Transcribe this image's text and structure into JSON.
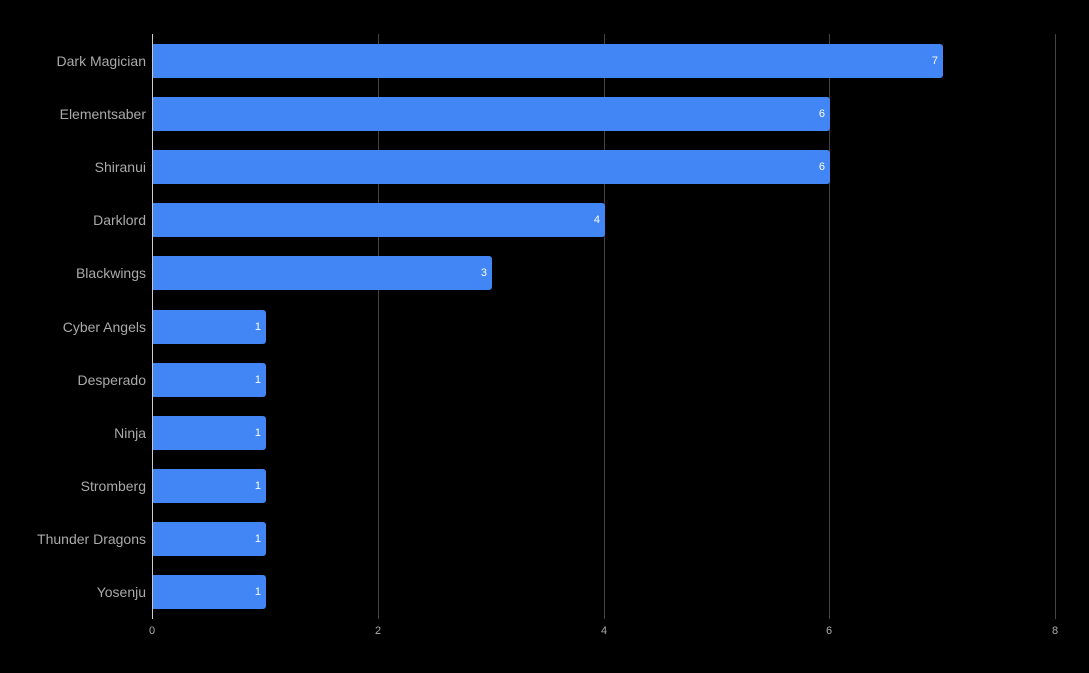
{
  "chart_data": {
    "type": "bar",
    "orientation": "horizontal",
    "title": "",
    "xlabel": "",
    "ylabel": "",
    "categories": [
      "Dark Magician",
      "Elementsaber",
      "Shiranui",
      "Darklord",
      "Blackwings",
      "Cyber Angels",
      "Desperado",
      "Ninja",
      "Stromberg",
      "Thunder Dragons",
      "Yosenju"
    ],
    "values": [
      7,
      6,
      6,
      4,
      3,
      1,
      1,
      1,
      1,
      1,
      1
    ],
    "xlim": [
      0,
      8
    ],
    "x_ticks": [
      "0",
      "2",
      "4",
      "6",
      "8"
    ],
    "grid": true,
    "data_labels": true,
    "bar_color": "#4285f4",
    "background": "#000000",
    "legend": null
  }
}
